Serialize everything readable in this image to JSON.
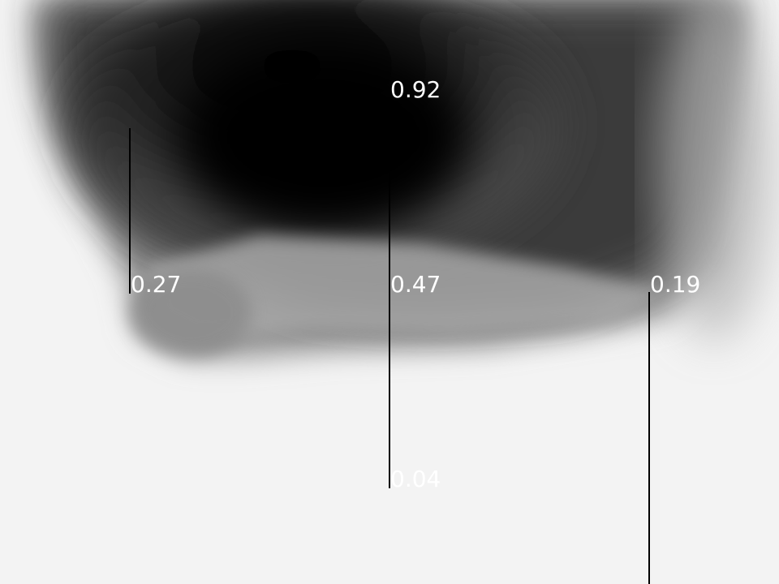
{
  "colors": {
    "background": "#f3f3f3",
    "line": "#000000",
    "label": "#ffffff"
  },
  "markers": [
    {
      "label": "0.92"
    },
    {
      "label": "0.27"
    },
    {
      "label": "0.47"
    },
    {
      "label": "0.19"
    },
    {
      "label": "0.04"
    }
  ]
}
